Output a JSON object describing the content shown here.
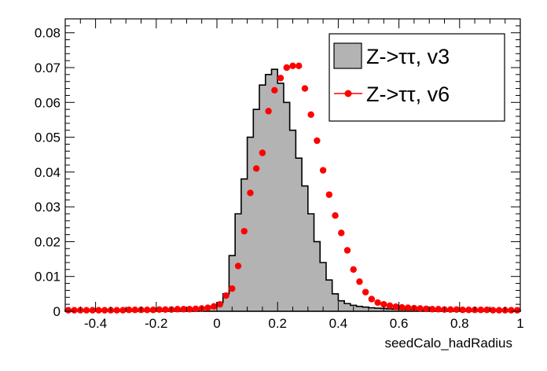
{
  "chart_data": {
    "type": "histogram",
    "xlabel": "seedCalo_hadRadius",
    "ylabel": "",
    "xlim": [
      -0.5,
      1.0
    ],
    "ylim": [
      0,
      0.084
    ],
    "x_tick_labels": [
      "-0.4",
      "-0.2",
      "0",
      "0.2",
      "0.4",
      "0.6",
      "0.8",
      "1"
    ],
    "y_tick_labels": [
      "0",
      "0.01",
      "0.02",
      "0.03",
      "0.04",
      "0.05",
      "0.06",
      "0.07",
      "0.08"
    ],
    "legend_position": "top-right",
    "bin_width": 0.02,
    "x": [
      -0.49,
      -0.47,
      -0.45,
      -0.43,
      -0.41,
      -0.39,
      -0.37,
      -0.35,
      -0.33,
      -0.31,
      -0.29,
      -0.27,
      -0.25,
      -0.23,
      -0.21,
      -0.19,
      -0.17,
      -0.15,
      -0.13,
      -0.11,
      -0.09,
      -0.07,
      -0.05,
      -0.03,
      -0.01,
      0.01,
      0.03,
      0.05,
      0.07,
      0.09,
      0.11,
      0.13,
      0.15,
      0.17,
      0.19,
      0.21,
      0.23,
      0.25,
      0.27,
      0.29,
      0.31,
      0.33,
      0.35,
      0.37,
      0.39,
      0.41,
      0.43,
      0.45,
      0.47,
      0.49,
      0.51,
      0.53,
      0.55,
      0.57,
      0.59,
      0.61,
      0.63,
      0.65,
      0.67,
      0.69,
      0.71,
      0.73,
      0.75,
      0.77,
      0.79,
      0.81,
      0.83,
      0.85,
      0.87,
      0.89,
      0.91,
      0.93,
      0.95,
      0.97,
      0.99
    ],
    "series": [
      {
        "name": "Z->ττ, v3",
        "style": "filled-histogram",
        "color": "#b3b3b3",
        "values": [
          0.0003,
          0.0003,
          0.0003,
          0.0003,
          0.0003,
          0.0003,
          0.0003,
          0.0003,
          0.0003,
          0.0003,
          0.0003,
          0.0004,
          0.0004,
          0.0004,
          0.0004,
          0.0004,
          0.0005,
          0.0005,
          0.0005,
          0.0006,
          0.0006,
          0.0007,
          0.0008,
          0.001,
          0.0014,
          0.0025,
          0.005,
          0.016,
          0.028,
          0.038,
          0.05,
          0.058,
          0.065,
          0.068,
          0.0695,
          0.0655,
          0.06,
          0.052,
          0.044,
          0.036,
          0.028,
          0.02,
          0.014,
          0.009,
          0.005,
          0.003,
          0.0022,
          0.0017,
          0.0014,
          0.0012,
          0.001,
          0.0009,
          0.0008,
          0.0007,
          0.0006,
          0.0006,
          0.0005,
          0.0005,
          0.0005,
          0.0004,
          0.0004,
          0.0004,
          0.0004,
          0.0003,
          0.0003,
          0.0003,
          0.0003,
          0.0003,
          0.0003,
          0.0003,
          0.0003,
          0.0003,
          0.0003,
          0.0003,
          0.0003
        ]
      },
      {
        "name": "Z->ττ, v6",
        "style": "markers",
        "color": "#ff0000",
        "values": [
          0.0003,
          0.0003,
          0.0003,
          0.0003,
          0.0003,
          0.0003,
          0.0003,
          0.0003,
          0.0003,
          0.0003,
          0.0004,
          0.0004,
          0.0004,
          0.0004,
          0.0004,
          0.0005,
          0.0005,
          0.0005,
          0.0006,
          0.0006,
          0.0006,
          0.0007,
          0.0008,
          0.001,
          0.0014,
          0.002,
          0.0045,
          0.0065,
          0.013,
          0.023,
          0.034,
          0.041,
          0.0455,
          0.0575,
          0.0635,
          0.067,
          0.07,
          0.0705,
          0.0705,
          0.064,
          0.0565,
          0.049,
          0.0405,
          0.0335,
          0.0275,
          0.0225,
          0.0175,
          0.012,
          0.0085,
          0.0055,
          0.0035,
          0.0025,
          0.002,
          0.0016,
          0.0013,
          0.0011,
          0.001,
          0.0009,
          0.0008,
          0.0007,
          0.0006,
          0.0006,
          0.0005,
          0.0005,
          0.0005,
          0.0004,
          0.0004,
          0.0004,
          0.0004,
          0.0004,
          0.0003,
          0.0003,
          0.0003,
          0.0003,
          0.0003
        ]
      }
    ]
  }
}
